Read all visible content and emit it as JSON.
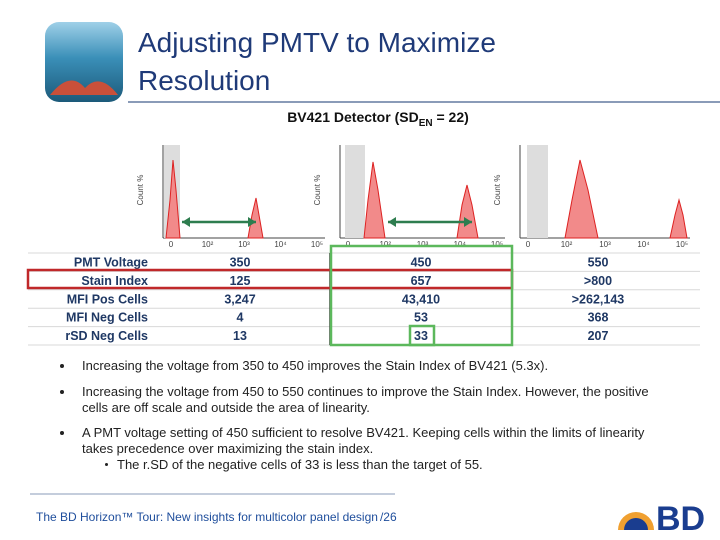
{
  "header": {
    "title_lines": [
      "Adjusting PMTV to Maximize",
      "Resolution"
    ]
  },
  "subtitle": {
    "text": "BV421 Detector (SD",
    "subscript": "EN",
    "suffix": " = 22)"
  },
  "histograms": {
    "y_label": "Count %",
    "x_ticks": [
      "0",
      "10²",
      "10³",
      "10⁴",
      "10⁵"
    ]
  },
  "table": {
    "rows": [
      [
        "PMT Voltage",
        "350",
        "450",
        "550"
      ],
      [
        "Stain Index",
        "125",
        "657",
        ">800"
      ],
      [
        "MFI Pos Cells",
        "3,247",
        "43,410",
        ">262,143"
      ],
      [
        "MFI Neg Cells",
        "4",
        "53",
        "368"
      ],
      [
        "rSD Neg Cells",
        "13",
        "33",
        "207"
      ]
    ]
  },
  "bullets": [
    {
      "text": "Increasing  the voltage from 350 to 450 improves the Stain Index of BV421 (5.3x)."
    },
    {
      "text": "Increasing  the voltage from 450 to 550  continues to improve the Stain Index. However, the positive cells are off scale and outside the area of linearity."
    },
    {
      "text": "A PMT voltage setting of 450 sufficient to resolve BV421.  Keeping cells within the limits of linearity takes precedence over maximizing the stain index.",
      "sub": [
        "The r.SD of the negative cells of 33 is less than the target of 55."
      ]
    }
  ],
  "footer": {
    "text": "The BD Horizon™ Tour: New insights for multicolor panel design",
    "page": "/26"
  },
  "logo": {
    "text": "BD"
  }
}
